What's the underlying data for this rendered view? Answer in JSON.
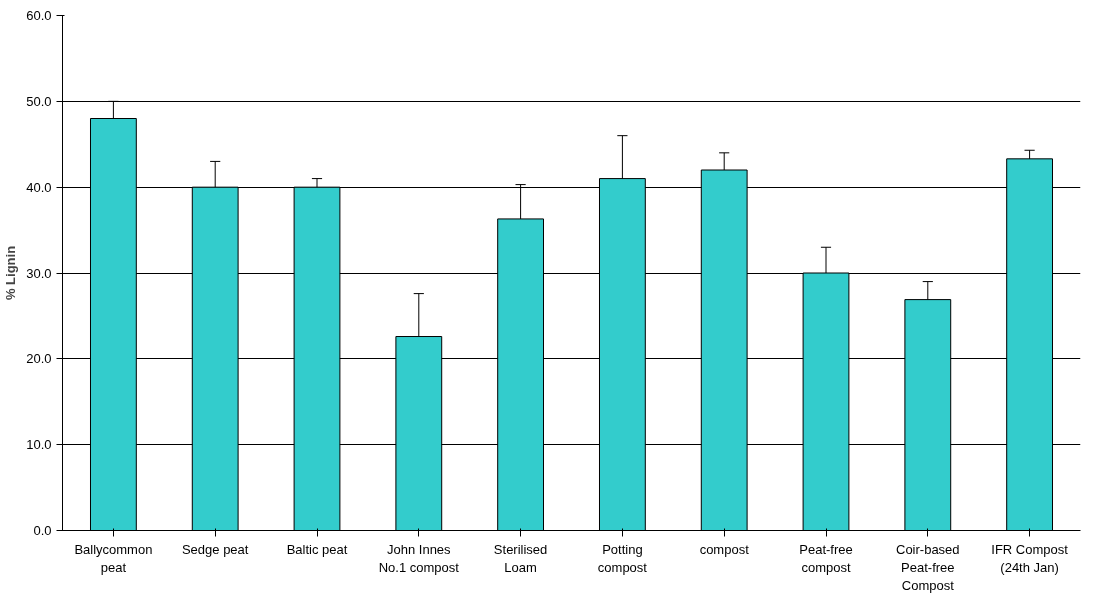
{
  "chart_data": {
    "type": "bar",
    "ylabel": "% Lignin",
    "categories": [
      "Ballycommon peat",
      "Sedge peat",
      "Baltic peat",
      "John Innes No.1 compost",
      "Sterilised Loam",
      "Potting compost",
      "compost",
      "Peat-free compost",
      "Coir-based Peat-free Compost",
      "IFR Compost (24th Jan)"
    ],
    "values": [
      48.0,
      40.0,
      40.0,
      22.6,
      36.3,
      41.0,
      42.0,
      30.0,
      26.9,
      43.3
    ],
    "errors": [
      [
        48.0,
        50.0
      ],
      [
        40.0,
        43.0
      ],
      [
        40.0,
        41.0
      ],
      [
        22.6,
        27.6
      ],
      [
        36.3,
        40.3
      ],
      [
        41.0,
        46.0
      ],
      [
        42.0,
        44.0
      ],
      [
        30.0,
        33.0
      ],
      [
        26.9,
        29.0
      ],
      [
        43.3,
        44.3
      ]
    ],
    "color": "#33cccc",
    "ylim": [
      0,
      60
    ],
    "yticks": [
      {
        "value": 0,
        "label": "0.0"
      },
      {
        "value": 10,
        "label": "10.0"
      },
      {
        "value": 20,
        "label": "20.0"
      },
      {
        "value": 30,
        "label": "30.0"
      },
      {
        "value": 40,
        "label": "40.0"
      },
      {
        "value": 50,
        "label": "50.0"
      },
      {
        "value": 60,
        "label": "60.0"
      }
    ],
    "grid": "y"
  }
}
